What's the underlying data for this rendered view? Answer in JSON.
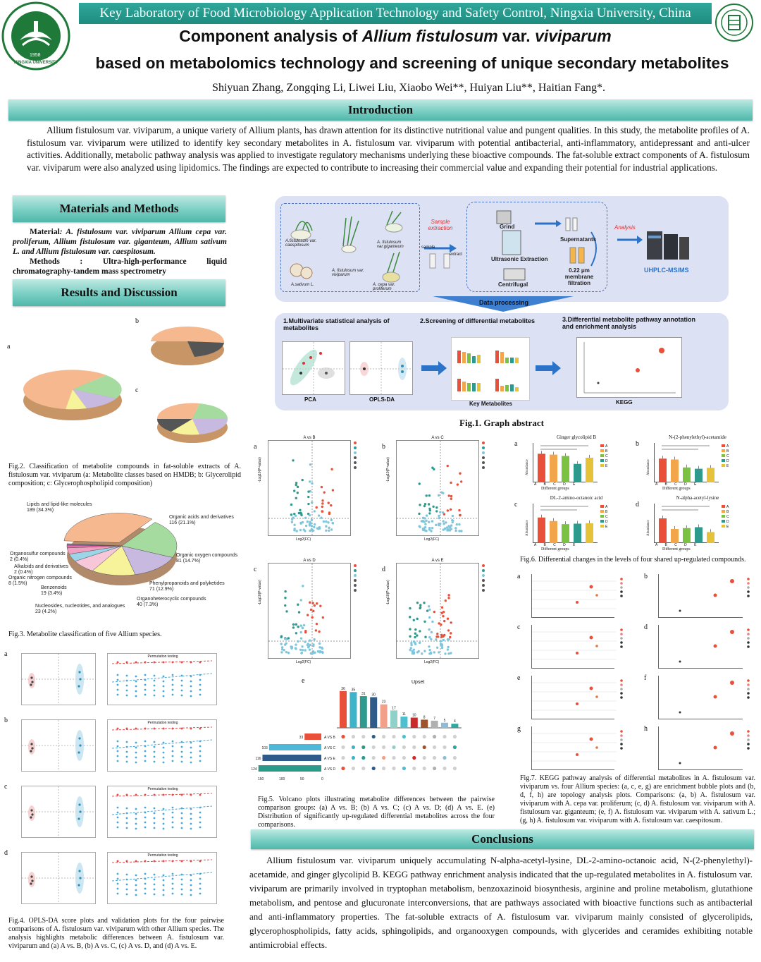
{
  "header": {
    "lab_banner": "Key Laboratory of Food Microbiology Application Technology and Safety Control, Ningxia University, China",
    "title_line1_a": "Component analysis of ",
    "title_line1_b": "Allium fistulosum",
    "title_line1_c": " var. ",
    "title_line1_d": "viviparum",
    "title_line2": "based on metabolomics technology and screening of unique secondary metabolites",
    "authors": "Shiyuan Zhang, Zongqing Li, Liwei Liu, Xiaobo Wei**, Huiyan Liu**, Haitian Fang*.",
    "logo_left_text": "NINGXIA UNIVERSITY",
    "logo_left_year": "1958"
  },
  "introduction": {
    "heading": "Introduction",
    "text": "Allium fistulosum var. viviparum, a unique variety of Allium plants, has drawn attention for its distinctive nutritional value and pungent qualities. In this study, the metabolite profiles of A. fistulosum var. viviparum were utilized to identify key secondary metabolites in A. fistulosum var. viviparum with potential antibacterial, anti-inflammatory, antidepressant and anti-ulcer activities. Additionally, metabolic pathway analysis was applied to investigate regulatory mechanisms underlying these bioactive compounds. The fat-soluble extract components of A. fistulosum var. viviparum were also analyzed using lipidomics. The findings are expected to contribute to increasing their commercial value and expanding their potential for industrial applications."
  },
  "methods": {
    "heading": "Materials and Methods",
    "material_label": "Material",
    "material_text": ": A. fistulosum var. viviparum Allium cepa var. proliferum, Allium fistulosum var. giganteum, Allium sativum L. and Allium fistulosum var. caespitosum.",
    "methods_label": "Methods",
    "methods_sep": ":",
    "methods_text": "Ultra-high-performance liquid chromatography-tandem mass spectrometry"
  },
  "results": {
    "heading": "Results and Discussion"
  },
  "fig1": {
    "caption": "Fig.1.  Graph abstract",
    "samples": [
      "A.fistulosum var. caespitosum",
      "A. fistulosum var. viviparum",
      "A. fistulosum var.giganteum",
      "A.sativum L.",
      "A. cepa var. proliferum"
    ],
    "sample_extraction": "Sample extraction",
    "sample": "sample",
    "extract": "extract",
    "grind": "Grind",
    "ultrasonic": "Ultrasonic Extraction",
    "centrifugal": "Centrifugal",
    "supernatants": "Supernatants",
    "membrane": "0.22 μm membrane filtration",
    "analysis": "Analysis",
    "instrument": "UHPLC-MS/MS",
    "data_processing": "Data processing",
    "step1": "1.Multivariate statistical analysis of metabolites",
    "step2": "2.Screening of differential metabolites",
    "step3": "3.Differential metabolite pathway annotation and enrichment analysis",
    "pca": "PCA",
    "oplsda": "OPLS-DA",
    "key_metabolites": "Key Metabolites",
    "kegg": "KEGG"
  },
  "fig2": {
    "caption": "Fig.2. Classification of metabolite compounds in fat-soluble extracts of A. fistulosum var. viviparum (a: Metabolite classes based on HMDB; b: Glycerolipid composition; c: Glycerophospholipid composition)",
    "label_a": "a",
    "label_b": "b",
    "label_c": "c"
  },
  "fig3": {
    "caption": "Fig.3. Metabolite classification of five Allium species.",
    "slices": [
      {
        "label": "Lipids and lipid-like molecules",
        "value": "189 (34.3%)",
        "pct": 34.3,
        "color": "#f6b98f"
      },
      {
        "label": "Organic acids and derivatives",
        "value": "116 (21.1%)",
        "pct": 21.1,
        "color": "#a6dba0"
      },
      {
        "label": "Organic oxygen compounds",
        "value": "81 (14.7%)",
        "pct": 14.7,
        "color": "#c7b9df"
      },
      {
        "label": "Phenylpropanoids and polyketides",
        "value": "71 (12.9%)",
        "pct": 12.9,
        "color": "#f7f39b"
      },
      {
        "label": "Organoheterocyclic compounds",
        "value": "40 (7.3%)",
        "pct": 7.3,
        "color": "#f7c6d8"
      },
      {
        "label": "Nucleosides, nucleotides, and analogues",
        "value": "23 (4.2%)",
        "pct": 4.2,
        "color": "#9ed4e8"
      },
      {
        "label": "Benzenoids",
        "value": "19 (3.4%)",
        "pct": 3.4,
        "color": "#f0a0c0"
      },
      {
        "label": "Organic nitrogen compounds",
        "value": "8 (1.5%)",
        "pct": 1.5,
        "color": "#e86aa6"
      },
      {
        "label": "Alkaloids and derivatives",
        "value": "2 (0.4%)",
        "pct": 0.4,
        "color": "#c06ad0"
      },
      {
        "label": "Organosulfur compounds",
        "value": "2 (0.4%)",
        "pct": 0.4,
        "color": "#7ab0e0"
      }
    ]
  },
  "fig4": {
    "caption": "Fig.4. OPLS-DA score plots and validation plots for the four pairwise comparisons of A. fistulosum var. viviparum with other Allium species. The analysis highlights metabolic differences between A. fistulosum var. viviparum and (a) A vs. B, (b) A vs. C, (c) A vs. D, and (d) A vs. E.",
    "labels": [
      "a",
      "b",
      "c",
      "d"
    ],
    "perm_title": "Permutation testing"
  },
  "fig5": {
    "caption": "Fig.5. Volcano plots illustrating metabolite differences between the pairwise comparison groups: (a) A vs. B; (b) A vs. C; (c) A vs. D; (d) A vs. E. (e) Distribution of significantly up-regulated differential metabolites across the four comparisons.",
    "volcano": [
      {
        "label": "a",
        "title": "A vs B"
      },
      {
        "label": "b",
        "title": "A vs C"
      },
      {
        "label": "c",
        "title": "A vs D"
      },
      {
        "label": "d",
        "title": "A vs E"
      }
    ],
    "xlabel": "Log2(FC)",
    "ylabel": "-Log10(P-value)",
    "upset_label": "e",
    "upset_title": "Upset",
    "upset_bars": [
      36,
      35,
      31,
      30,
      23,
      17,
      11,
      10,
      8,
      7,
      5,
      4
    ],
    "upset_colors": [
      "#e8503a",
      "#3fb3c9",
      "#2e9a8e",
      "#2f5b8a",
      "#f2a089",
      "#8fd0c8",
      "#4cc0d0",
      "#c92a2a",
      "#a0522d",
      "#b0b0b0",
      "#8fbcd4",
      "#2aa9a0"
    ],
    "sets": [
      {
        "name": "A VS B",
        "value": 33,
        "color": "#e8503a"
      },
      {
        "name": "A VS C",
        "value": 103,
        "color": "#4fb8d8"
      },
      {
        "name": "A VS E",
        "value": 116,
        "color": "#2f5b8a"
      },
      {
        "name": "A VS D",
        "value": 124,
        "color": "#2a9a8a"
      }
    ],
    "set_axis": [
      "150",
      "100",
      "50",
      "0"
    ]
  },
  "fig6": {
    "caption": "Fig.6. Differential changes in the levels of four shared up-regulated compounds.",
    "panels": [
      {
        "label": "a",
        "title": "Ginger glycolipid B",
        "values": [
          6.5,
          6.3,
          6.0,
          4.2,
          5.6
        ]
      },
      {
        "label": "b",
        "title": "N-(2-phenylethyl)-acetamide",
        "values": [
          5.4,
          5.2,
          3.4,
          3.1,
          3.3
        ]
      },
      {
        "label": "c",
        "title": "DL-2-amino-octanoic acid",
        "values": [
          5.8,
          5.0,
          4.3,
          4.4,
          4.5
        ]
      },
      {
        "label": "d",
        "title": "N-alpha-acetyl-lysine",
        "values": [
          5.6,
          3.2,
          3.4,
          3.6,
          2.5
        ]
      }
    ],
    "xlabel": "Different groups",
    "ylabel": "Abundance",
    "groups": [
      "A",
      "B",
      "C",
      "D",
      "E"
    ],
    "colors": [
      "#e8503a",
      "#f2a54a",
      "#7cc242",
      "#2e9a8e",
      "#e6c23a"
    ]
  },
  "fig7": {
    "caption": "Fig.7. KEGG pathway analysis of differential metabolites in A. fistulosum var. viviparum vs. four Allium species: (a, c, e, g) are enrichment bubble plots and (b, d, f, h) are topology analysis plots. Comparisons: (a, b) A. fistulosum var. viviparum with A. cepa var. proliferum; (c, d) A. fistulosum var. viviparum with A. fistulosum var. giganteum; (e, f) A. fistulosum var. viviparum with A. sativum L.; (g, h) A. fistulosum var. viviparum with A. fistulosum var. caespitosum.",
    "labels": [
      "a",
      "b",
      "c",
      "d",
      "e",
      "f",
      "g",
      "h"
    ]
  },
  "conclusions": {
    "heading": "Conclusions",
    "text": "Allium fistulosum var. viviparum uniquely accumulating N-alpha-acetyl-lysine, DL-2-amino-octanoic acid, N-(2-phenylethyl)-acetamide, and ginger glycolipid B. KEGG pathway enrichment analysis indicated that the up-regulated metabolites in A. fistulosum var. viviparum are primarily involved in tryptophan metabolism, benzoxazinoid biosynthesis, arginine and proline metabolism, glutathione metabolism, and pentose and glucuronate interconversions, that are pathways associated with bioactive functions such as antibacterial and anti-inflammatory properties. The fat-soluble extracts of A. fistulosum var. viviparum mainly consisted of glycerolipids, glycerophospholipids, fatty acids, sphingolipids, and organooxygen compounds, with glycerides and ceramides exhibiting notable antimicrobial effects."
  },
  "colors": {
    "teal": "#1f8c80",
    "panel_bg": "#dfe3f5",
    "arrow": "#2b73c9"
  }
}
